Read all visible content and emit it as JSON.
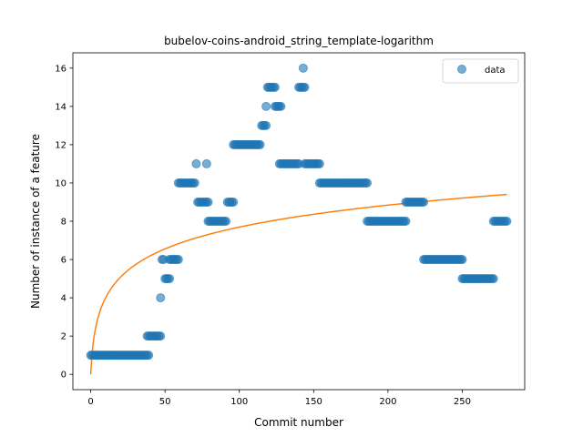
{
  "chart_data": {
    "type": "scatter",
    "title": "bubelov-coins-android_string_template-logarithm",
    "xlabel": "Commit number",
    "ylabel": "Number of instance of a feature",
    "xlim": [
      -12,
      292
    ],
    "ylim": [
      -0.8,
      16.8
    ],
    "xticks": [
      0,
      50,
      100,
      150,
      200,
      250
    ],
    "yticks": [
      0,
      2,
      4,
      6,
      8,
      10,
      12,
      14,
      16
    ],
    "legend": {
      "position": "top-right",
      "entries": [
        "data"
      ]
    },
    "colors": {
      "data": "#1f77b4",
      "fit": "#ff7f0e"
    },
    "series": [
      {
        "name": "data",
        "kind": "scatter",
        "segments": [
          {
            "x_start": 0,
            "x_end": 39,
            "y": 1
          },
          {
            "x_start": 38,
            "x_end": 47,
            "y": 2
          },
          {
            "x_start": 47,
            "x_end": 47,
            "y": 4
          },
          {
            "x_start": 48,
            "x_end": 49,
            "y": 6
          },
          {
            "x_start": 50,
            "x_end": 53,
            "y": 5
          },
          {
            "x_start": 53,
            "x_end": 59,
            "y": 6
          },
          {
            "x_start": 59,
            "x_end": 70,
            "y": 10
          },
          {
            "x_start": 71,
            "x_end": 71,
            "y": 11
          },
          {
            "x_start": 72,
            "x_end": 79,
            "y": 9
          },
          {
            "x_start": 78,
            "x_end": 78,
            "y": 11
          },
          {
            "x_start": 79,
            "x_end": 91,
            "y": 8
          },
          {
            "x_start": 92,
            "x_end": 96,
            "y": 9
          },
          {
            "x_start": 96,
            "x_end": 114,
            "y": 12
          },
          {
            "x_start": 115,
            "x_end": 118,
            "y": 13
          },
          {
            "x_start": 118,
            "x_end": 118,
            "y": 14
          },
          {
            "x_start": 119,
            "x_end": 124,
            "y": 15
          },
          {
            "x_start": 124,
            "x_end": 128,
            "y": 14
          },
          {
            "x_start": 127,
            "x_end": 140,
            "y": 11
          },
          {
            "x_start": 140,
            "x_end": 144,
            "y": 15
          },
          {
            "x_start": 143,
            "x_end": 143,
            "y": 16
          },
          {
            "x_start": 144,
            "x_end": 154,
            "y": 11
          },
          {
            "x_start": 154,
            "x_end": 186,
            "y": 10
          },
          {
            "x_start": 186,
            "x_end": 212,
            "y": 8
          },
          {
            "x_start": 212,
            "x_end": 224,
            "y": 9
          },
          {
            "x_start": 224,
            "x_end": 250,
            "y": 6
          },
          {
            "x_start": 250,
            "x_end": 271,
            "y": 5
          },
          {
            "x_start": 271,
            "x_end": 280,
            "y": 8
          }
        ]
      },
      {
        "name": "",
        "kind": "line",
        "model": "y = a * ln(x + 1)",
        "a": 1.667,
        "x_range": [
          0,
          280
        ]
      }
    ]
  }
}
